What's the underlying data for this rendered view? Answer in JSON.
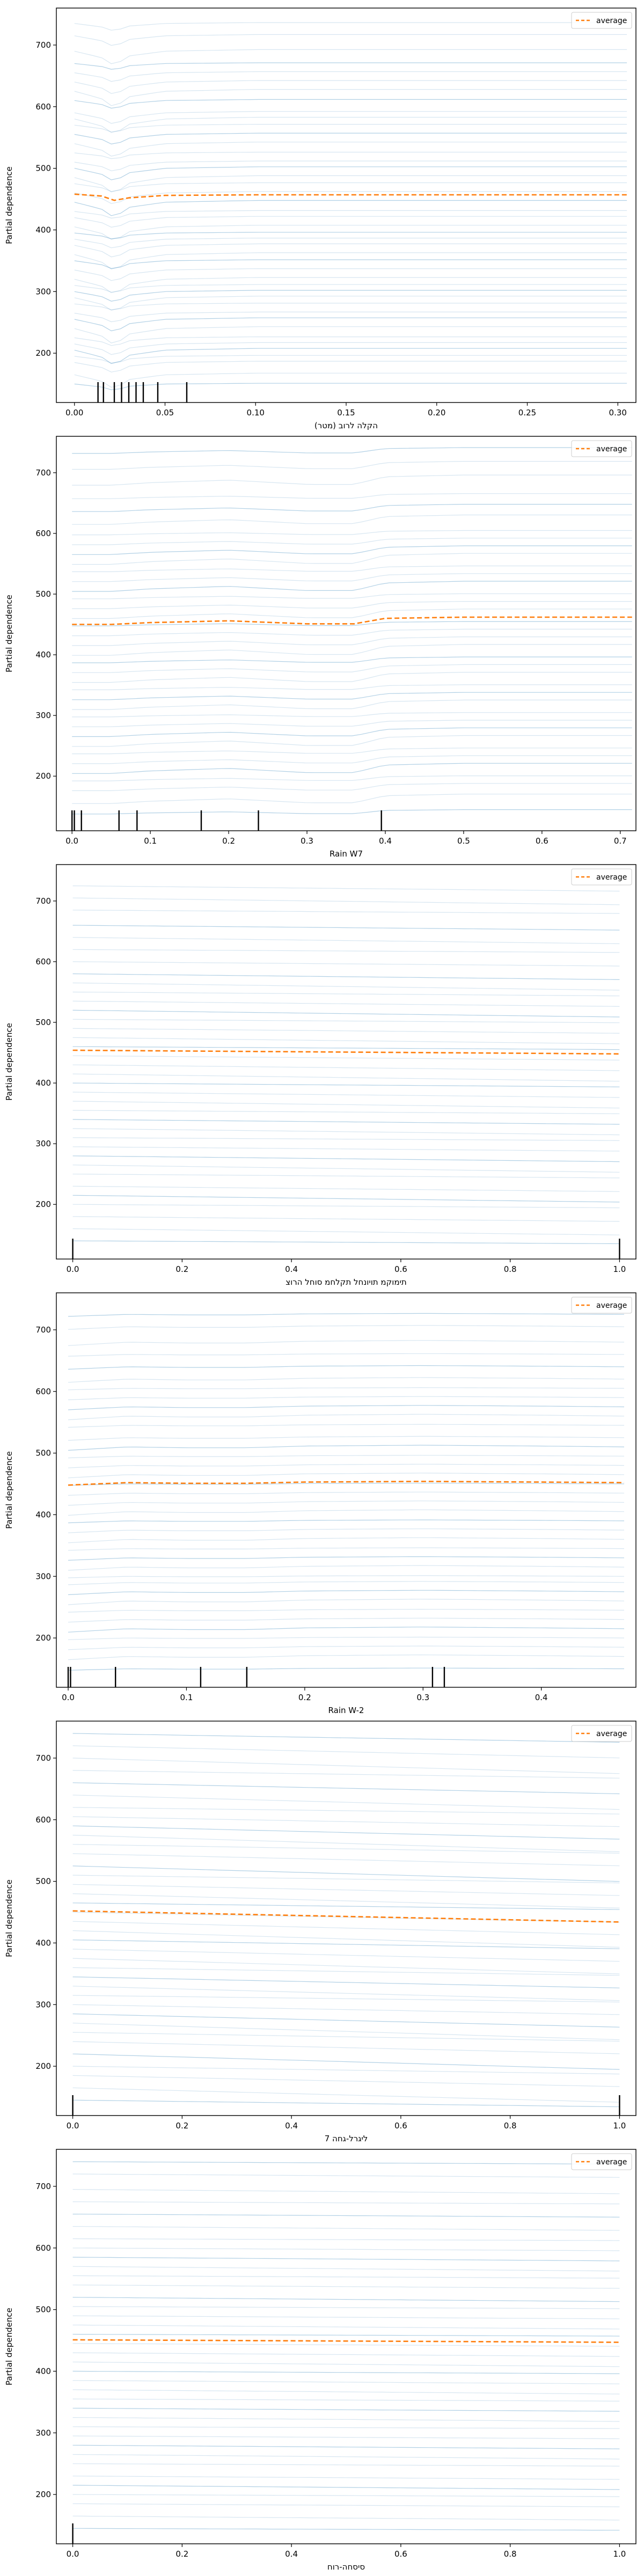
{
  "colors": {
    "ice_line": "#1f77b4",
    "average_line": "#ff7f0e",
    "rug": "#000000",
    "axes": "#000000",
    "legend_border": "#cccccc"
  },
  "chart_data": [
    {
      "type": "line",
      "xlabel": "(מטר) הקלה לרוב",
      "ylabel": "Partial dependence",
      "xlim": [
        -0.01,
        0.31
      ],
      "ylim": [
        120,
        760
      ],
      "xticks": [
        0.0,
        0.05,
        0.1,
        0.15,
        0.2,
        0.25,
        0.3
      ],
      "xtick_labels": [
        "0.00",
        "0.05",
        "0.10",
        "0.15",
        "0.20",
        "0.25",
        "0.30"
      ],
      "yticks": [
        200,
        300,
        400,
        500,
        600,
        700
      ],
      "ytick_labels": [
        "200",
        "300",
        "400",
        "500",
        "600",
        "700"
      ],
      "x_domain": [
        0.0,
        0.305
      ],
      "legend": {
        "label": "average",
        "placement": "top-right"
      },
      "rug": [
        0.013,
        0.016,
        0.022,
        0.026,
        0.03,
        0.034,
        0.038,
        0.046,
        0.062
      ],
      "average": {
        "name": "average",
        "x": [
          0.0,
          0.015,
          0.022,
          0.03,
          0.05,
          0.1,
          0.2,
          0.305
        ],
        "y": [
          458,
          455,
          448,
          452,
          456,
          457,
          457,
          457
        ]
      },
      "ice_levels": [
        150,
        165,
        185,
        195,
        205,
        215,
        225,
        240,
        255,
        265,
        280,
        290,
        300,
        310,
        320,
        335,
        350,
        360,
        375,
        385,
        395,
        405,
        420,
        430,
        445,
        460,
        475,
        485,
        500,
        510,
        525,
        540,
        555,
        570,
        580,
        590,
        610,
        625,
        640,
        655,
        670,
        690,
        715,
        735
      ],
      "ice_shape": {
        "x": [
          0.0,
          0.015,
          0.022,
          0.03,
          0.05,
          0.1,
          0.2,
          0.305
        ],
        "delta": [
          0,
          -8,
          -18,
          -6,
          0,
          2,
          2,
          2
        ]
      }
    },
    {
      "type": "line",
      "xlabel": "Rain W7",
      "ylabel": "Partial dependence",
      "xlim": [
        -0.02,
        0.72
      ],
      "ylim": [
        110,
        760
      ],
      "xticks": [
        0.0,
        0.1,
        0.2,
        0.3,
        0.4,
        0.5,
        0.6,
        0.7
      ],
      "xtick_labels": [
        "0.0",
        "0.1",
        "0.2",
        "0.3",
        "0.4",
        "0.5",
        "0.6",
        "0.7"
      ],
      "yticks": [
        200,
        300,
        400,
        500,
        600,
        700
      ],
      "ytick_labels": [
        "200",
        "300",
        "400",
        "500",
        "600",
        "700"
      ],
      "x_domain": [
        0.0,
        0.715
      ],
      "legend": {
        "label": "average",
        "placement": "top-right"
      },
      "rug": [
        0.0,
        0.003,
        0.012,
        0.06,
        0.083,
        0.165,
        0.238,
        0.395
      ],
      "average": {
        "name": "average",
        "x": [
          0.0,
          0.05,
          0.1,
          0.2,
          0.3,
          0.36,
          0.4,
          0.5,
          0.715
        ],
        "y": [
          450,
          450,
          453,
          456,
          451,
          451,
          460,
          462,
          462
        ]
      },
      "ice_levels": [
        140,
        160,
        180,
        195,
        210,
        225,
        240,
        255,
        270,
        285,
        300,
        315,
        330,
        345,
        360,
        375,
        390,
        405,
        420,
        435,
        450,
        465,
        480,
        495,
        510,
        525,
        540,
        555,
        570,
        585,
        600,
        620,
        640,
        660,
        685,
        710,
        735
      ],
      "ice_shape": {
        "x": [
          0.0,
          0.05,
          0.1,
          0.2,
          0.3,
          0.36,
          0.4,
          0.5,
          0.715
        ],
        "delta": [
          -4,
          -4,
          -1,
          2,
          -3,
          -3,
          6,
          8,
          8
        ]
      }
    },
    {
      "type": "line",
      "xlabel": "תימוקמ תויונחל תקלחמ סוחל הרוצ",
      "ylabel": "Partial dependence",
      "xlim": [
        -0.03,
        1.03
      ],
      "ylim": [
        110,
        760
      ],
      "xticks": [
        0.0,
        0.2,
        0.4,
        0.6,
        0.8,
        1.0
      ],
      "xtick_labels": [
        "0.0",
        "0.2",
        "0.4",
        "0.6",
        "0.8",
        "1.0"
      ],
      "yticks": [
        200,
        300,
        400,
        500,
        600,
        700
      ],
      "ytick_labels": [
        "200",
        "300",
        "400",
        "500",
        "600",
        "700"
      ],
      "x_domain": [
        0.0,
        1.0
      ],
      "legend": {
        "label": "average",
        "placement": "top-right"
      },
      "rug": [
        0.0,
        1.0
      ],
      "average": {
        "name": "average",
        "x": [
          0.0,
          1.0
        ],
        "y": [
          454,
          448
        ]
      },
      "ice_levels": [
        140,
        160,
        180,
        200,
        215,
        230,
        250,
        265,
        280,
        295,
        310,
        325,
        340,
        355,
        370,
        385,
        400,
        415,
        430,
        445,
        460,
        475,
        490,
        505,
        520,
        535,
        550,
        565,
        580,
        600,
        620,
        640,
        660,
        685,
        705,
        725
      ],
      "ice_shape": {
        "x": [
          0.0,
          1.0
        ],
        "delta": [
          0,
          -8
        ]
      }
    },
    {
      "type": "line",
      "xlabel": "Rain W-2",
      "ylabel": "Partial dependence",
      "xlim": [
        -0.01,
        0.48
      ],
      "ylim": [
        120,
        760
      ],
      "xticks": [
        0.0,
        0.1,
        0.2,
        0.3,
        0.4
      ],
      "xtick_labels": [
        "0.0",
        "0.1",
        "0.2",
        "0.3",
        "0.4"
      ],
      "yticks": [
        200,
        300,
        400,
        500,
        600,
        700
      ],
      "ytick_labels": [
        "200",
        "300",
        "400",
        "500",
        "600",
        "700"
      ],
      "x_domain": [
        0.0,
        0.47
      ],
      "legend": {
        "label": "average",
        "placement": "top-right"
      },
      "rug": [
        0.0,
        0.002,
        0.04,
        0.112,
        0.151,
        0.308,
        0.318
      ],
      "average": {
        "name": "average",
        "x": [
          0.0,
          0.05,
          0.1,
          0.15,
          0.2,
          0.3,
          0.4,
          0.47
        ],
        "y": [
          448,
          452,
          451,
          451,
          453,
          454,
          453,
          452
        ]
      },
      "ice_levels": [
        150,
        170,
        185,
        200,
        215,
        230,
        245,
        260,
        275,
        290,
        300,
        315,
        330,
        345,
        360,
        375,
        390,
        405,
        420,
        435,
        450,
        465,
        480,
        495,
        510,
        525,
        545,
        560,
        575,
        590,
        605,
        620,
        640,
        660,
        680,
        705,
        725
      ],
      "ice_shape": {
        "x": [
          0.0,
          0.05,
          0.1,
          0.15,
          0.2,
          0.3,
          0.4,
          0.47
        ],
        "delta": [
          -4,
          0,
          -1,
          -1,
          1,
          2,
          1,
          0
        ]
      }
    },
    {
      "type": "line",
      "xlabel": "7 ליגרל-גחה",
      "ylabel": "Partial dependence",
      "xlim": [
        -0.03,
        1.03
      ],
      "ylim": [
        120,
        760
      ],
      "xticks": [
        0.0,
        0.2,
        0.4,
        0.6,
        0.8,
        1.0
      ],
      "xtick_labels": [
        "0.0",
        "0.2",
        "0.4",
        "0.6",
        "0.8",
        "1.0"
      ],
      "yticks": [
        200,
        300,
        400,
        500,
        600,
        700
      ],
      "ytick_labels": [
        "200",
        "300",
        "400",
        "500",
        "600",
        "700"
      ],
      "x_domain": [
        0.0,
        1.0
      ],
      "legend": {
        "label": "average",
        "placement": "top-right"
      },
      "rug": [
        0.0,
        1.0
      ],
      "average": {
        "name": "average",
        "x": [
          0.0,
          1.0
        ],
        "y": [
          452,
          434
        ]
      },
      "ice_levels": [
        145,
        165,
        185,
        200,
        220,
        240,
        255,
        270,
        285,
        300,
        315,
        330,
        345,
        360,
        375,
        390,
        405,
        420,
        435,
        450,
        465,
        480,
        495,
        510,
        525,
        545,
        560,
        575,
        590,
        605,
        620,
        640,
        660,
        680,
        700,
        720,
        740
      ],
      "ice_shape": {
        "x": [
          0.0,
          1.0
        ],
        "delta": [
          0,
          -18
        ]
      }
    },
    {
      "type": "line",
      "xlabel": "סיסחה-רוח",
      "ylabel": "Partial dependence",
      "xlim": [
        -0.03,
        1.03
      ],
      "ylim": [
        120,
        760
      ],
      "xticks": [
        0.0,
        0.2,
        0.4,
        0.6,
        0.8,
        1.0
      ],
      "xtick_labels": [
        "0.0",
        "0.2",
        "0.4",
        "0.6",
        "0.8",
        "1.0"
      ],
      "yticks": [
        200,
        300,
        400,
        500,
        600,
        700
      ],
      "ytick_labels": [
        "200",
        "300",
        "400",
        "500",
        "600",
        "700"
      ],
      "x_domain": [
        0.0,
        1.0
      ],
      "legend": {
        "label": "average",
        "placement": "top-right"
      },
      "rug": [
        0.0
      ],
      "average": {
        "name": "average",
        "x": [
          0.0,
          1.0
        ],
        "y": [
          451,
          447
        ]
      },
      "ice_levels": [
        145,
        165,
        185,
        200,
        215,
        230,
        250,
        265,
        280,
        295,
        310,
        325,
        340,
        355,
        370,
        385,
        400,
        415,
        430,
        445,
        460,
        475,
        490,
        505,
        520,
        540,
        555,
        570,
        585,
        600,
        615,
        635,
        655,
        675,
        695,
        720,
        740
      ],
      "ice_shape": {
        "x": [
          0.0,
          1.0
        ],
        "delta": [
          0,
          -5
        ]
      }
    }
  ]
}
